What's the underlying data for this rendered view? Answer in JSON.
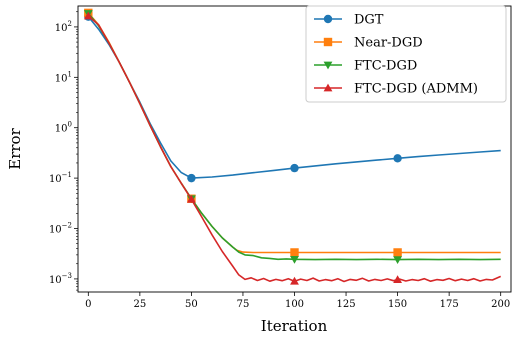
{
  "chart_data": {
    "type": "line",
    "xlabel": "Iteration",
    "ylabel": "Error",
    "xlim": [
      -5,
      205
    ],
    "ylim": [
      0.00055,
      260
    ],
    "yscale": "log",
    "grid": false,
    "legend_position": "top-right",
    "x_ticks": [
      0,
      25,
      50,
      75,
      100,
      125,
      150,
      175,
      200
    ],
    "x_tick_labels": [
      "0",
      "25",
      "50",
      "75",
      "100",
      "125",
      "150",
      "175",
      "200"
    ],
    "y_ticks": [
      0.001,
      0.01,
      0.1,
      1,
      10,
      100
    ],
    "y_tick_labels": [
      {
        "base": "10",
        "exp": "−3"
      },
      {
        "base": "10",
        "exp": "−2"
      },
      {
        "base": "10",
        "exp": "−1"
      },
      {
        "base": "10",
        "exp": "0"
      },
      {
        "base": "10",
        "exp": "1"
      },
      {
        "base": "10",
        "exp": "2"
      }
    ],
    "series": [
      {
        "name": "DGT",
        "color": "#1f77b4",
        "marker": "circle",
        "marker_x": [
          0,
          50,
          100,
          150
        ],
        "x": [
          0,
          5,
          10,
          15,
          20,
          25,
          30,
          35,
          40,
          45,
          50,
          60,
          70,
          80,
          90,
          100,
          110,
          120,
          130,
          140,
          150,
          160,
          170,
          180,
          190,
          200
        ],
        "y": [
          160,
          90,
          45,
          20,
          8,
          3.2,
          1.2,
          0.5,
          0.22,
          0.13,
          0.1,
          0.105,
          0.115,
          0.128,
          0.142,
          0.158,
          0.175,
          0.192,
          0.21,
          0.228,
          0.247,
          0.267,
          0.287,
          0.308,
          0.33,
          0.352
        ]
      },
      {
        "name": "Near-DGD",
        "color": "#ff7f0e",
        "marker": "square",
        "marker_x": [
          0,
          50,
          100,
          150
        ],
        "x": [
          0,
          5,
          10,
          15,
          20,
          25,
          30,
          35,
          40,
          45,
          50,
          55,
          60,
          65,
          70,
          72,
          75,
          80,
          90,
          100,
          125,
          150,
          175,
          200
        ],
        "y": [
          190,
          110,
          50,
          20,
          8,
          3.0,
          1.1,
          0.42,
          0.17,
          0.08,
          0.039,
          0.02,
          0.011,
          0.0065,
          0.0043,
          0.0037,
          0.0034,
          0.00335,
          0.00335,
          0.00335,
          0.00335,
          0.00335,
          0.00335,
          0.00335
        ]
      },
      {
        "name": "FTC-DGD",
        "color": "#2ca02c",
        "marker": "triangle-down",
        "marker_x": [
          0,
          50,
          100,
          150
        ],
        "x": [
          0,
          5,
          10,
          15,
          20,
          25,
          30,
          35,
          40,
          45,
          50,
          55,
          60,
          65,
          70,
          73,
          76,
          80,
          84,
          88,
          92,
          96,
          100,
          110,
          120,
          130,
          140,
          150,
          160,
          170,
          180,
          190,
          200
        ],
        "y": [
          185,
          105,
          48,
          20,
          8,
          3.0,
          1.1,
          0.42,
          0.17,
          0.08,
          0.039,
          0.02,
          0.011,
          0.0065,
          0.0043,
          0.0034,
          0.003,
          0.0029,
          0.00262,
          0.00255,
          0.00245,
          0.0025,
          0.00245,
          0.00242,
          0.00245,
          0.00242,
          0.00245,
          0.00242,
          0.00245,
          0.00242,
          0.00245,
          0.00242,
          0.00245
        ]
      },
      {
        "name": "FTC-DGD (ADMM)",
        "color": "#d62728",
        "marker": "triangle-up",
        "marker_x": [
          0,
          50,
          100,
          150
        ],
        "x": [
          0,
          5,
          10,
          15,
          20,
          25,
          30,
          35,
          40,
          45,
          50,
          55,
          60,
          65,
          70,
          73,
          76,
          79,
          82,
          85,
          88,
          91,
          94,
          97,
          100,
          103,
          106,
          109,
          112,
          115,
          118,
          121,
          124,
          127,
          130,
          133,
          136,
          139,
          142,
          145,
          148,
          151,
          154,
          157,
          160,
          163,
          166,
          169,
          172,
          175,
          178,
          181,
          184,
          187,
          190,
          193,
          196,
          200
        ],
        "y": [
          165,
          110,
          48,
          20,
          8,
          3.0,
          1.1,
          0.42,
          0.17,
          0.08,
          0.038,
          0.017,
          0.0075,
          0.0035,
          0.0018,
          0.0012,
          0.00098,
          0.00105,
          0.00093,
          0.00102,
          0.0009,
          0.00098,
          0.00092,
          0.00101,
          0.0009,
          0.00099,
          0.00093,
          0.00104,
          0.00091,
          0.00097,
          0.00092,
          0.00101,
          0.00089,
          0.00098,
          0.00094,
          0.00103,
          0.00091,
          0.00098,
          0.00093,
          0.001,
          0.00092,
          0.00099,
          0.00091,
          0.00097,
          0.00093,
          0.00101,
          0.0009,
          0.00097,
          0.00094,
          0.00102,
          0.00092,
          0.00099,
          0.00093,
          0.00101,
          0.00091,
          0.00098,
          0.00095,
          0.00112
        ]
      }
    ]
  }
}
